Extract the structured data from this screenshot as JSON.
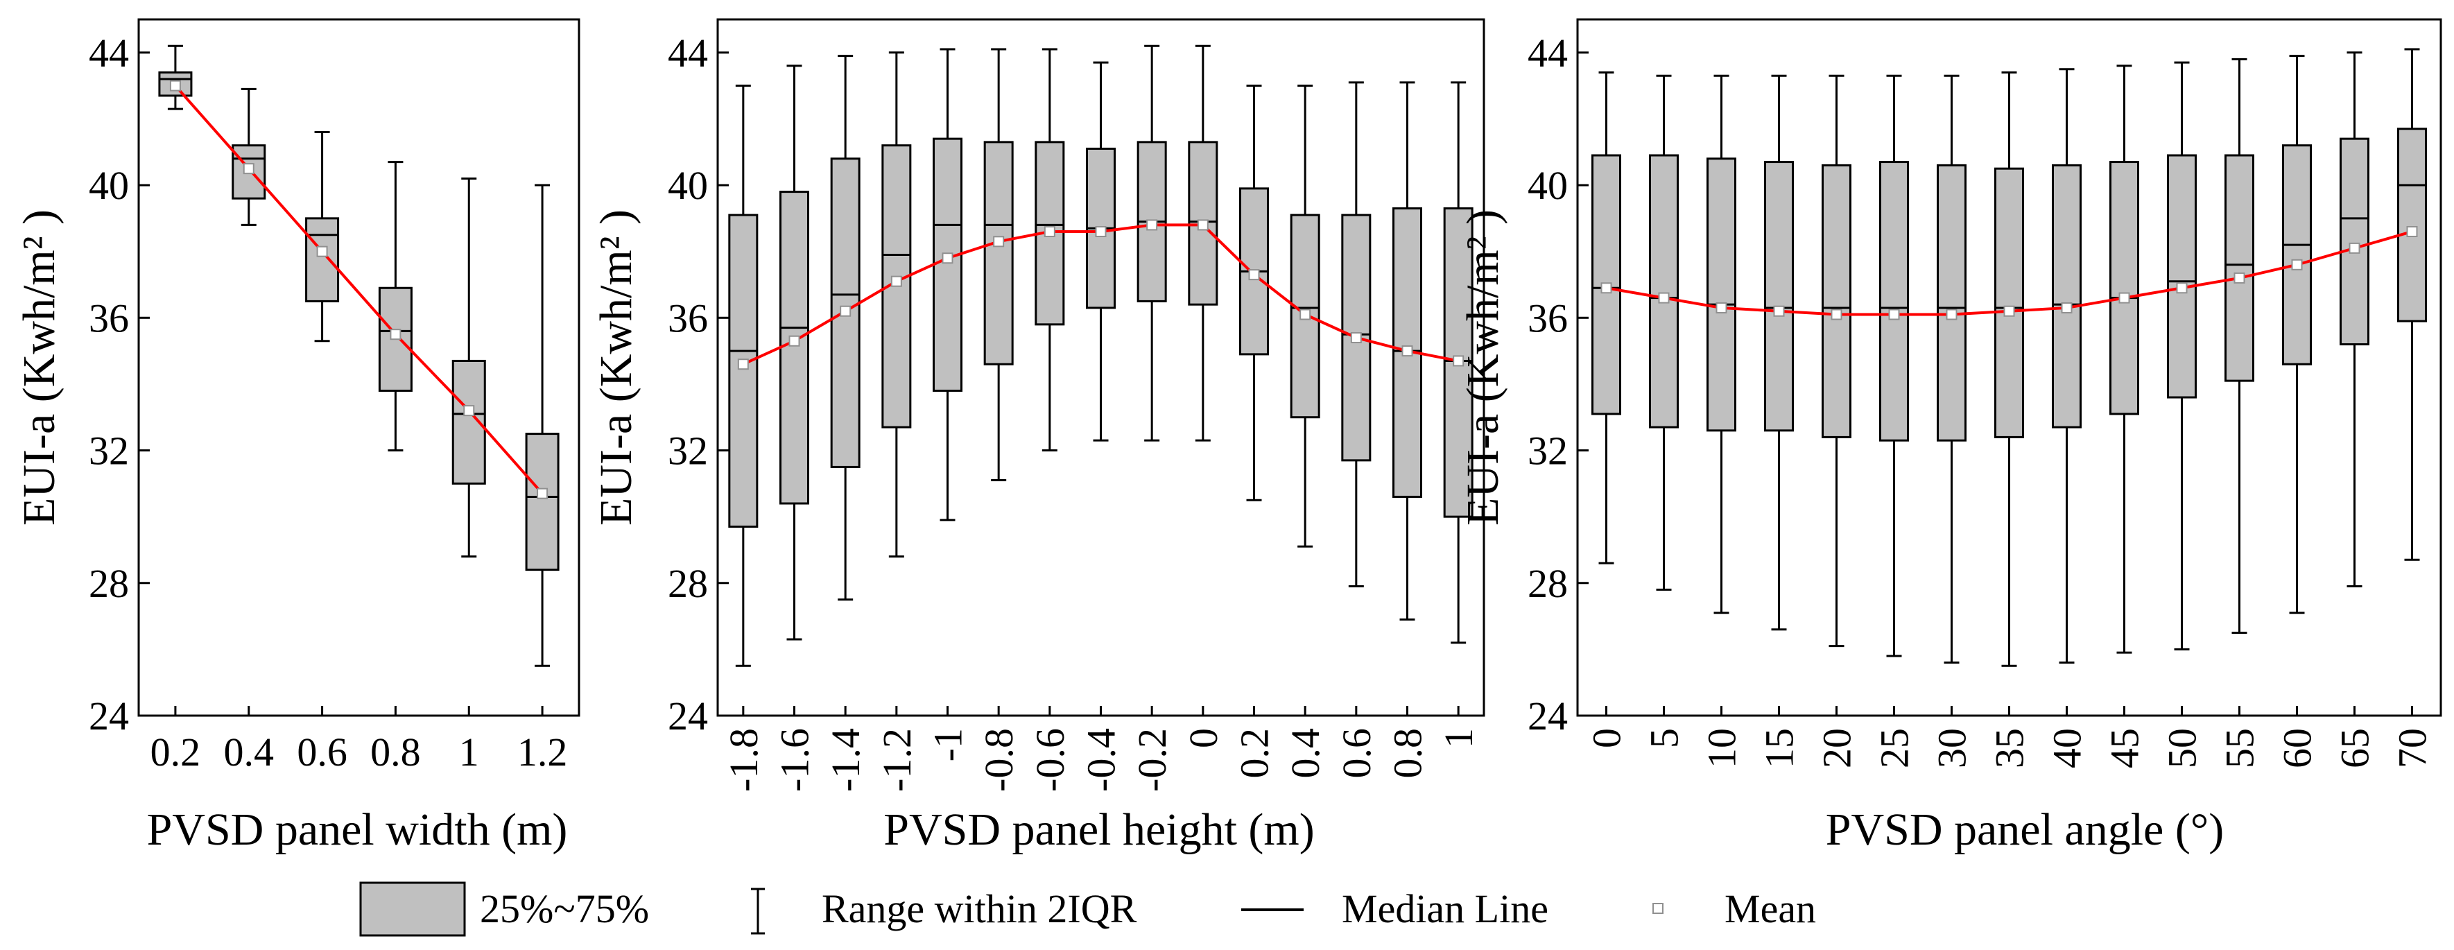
{
  "colors": {
    "box_fill": "#c0c0c0",
    "stroke": "#000000",
    "mean_line": "#ff0000",
    "mean_marker_fill": "#ffffff",
    "mean_marker_stroke": "#909090"
  },
  "chart_data": [
    {
      "type": "box",
      "title": "",
      "xlabel": "PVSD panel width (m)",
      "ylabel": "EUI-a (Kwh/m² )",
      "ylim": [
        24,
        45
      ],
      "yticks": [
        "24",
        "28",
        "32",
        "36",
        "40",
        "44"
      ],
      "x_tick_rotation": "horizontal",
      "categories": [
        "0.2",
        "0.4",
        "0.6",
        "0.8",
        "1",
        "1.2"
      ],
      "boxes": [
        {
          "whisker_low": 42.3,
          "q1": 42.7,
          "median": 43.2,
          "q3": 43.4,
          "whisker_high": 44.2,
          "mean": 43.0
        },
        {
          "whisker_low": 38.8,
          "q1": 39.6,
          "median": 40.8,
          "q3": 41.2,
          "whisker_high": 42.9,
          "mean": 40.5
        },
        {
          "whisker_low": 35.3,
          "q1": 36.5,
          "median": 38.5,
          "q3": 39.0,
          "whisker_high": 41.6,
          "mean": 38.0
        },
        {
          "whisker_low": 32.0,
          "q1": 33.8,
          "median": 35.6,
          "q3": 36.9,
          "whisker_high": 40.7,
          "mean": 35.5
        },
        {
          "whisker_low": 28.8,
          "q1": 31.0,
          "median": 33.1,
          "q3": 34.7,
          "whisker_high": 40.2,
          "mean": 33.2
        },
        {
          "whisker_low": 25.5,
          "q1": 28.4,
          "median": 30.6,
          "q3": 32.5,
          "whisker_high": 40.0,
          "mean": 30.7
        }
      ]
    },
    {
      "type": "box",
      "title": "",
      "xlabel": "PVSD panel height (m)",
      "ylabel": "EUI-a (Kwh/m² )",
      "ylim": [
        24,
        45
      ],
      "yticks": [
        "24",
        "28",
        "32",
        "36",
        "40",
        "44"
      ],
      "x_tick_rotation": "vertical",
      "categories": [
        "-1.8",
        "-1.6",
        "-1.4",
        "-1.2",
        "-1",
        "-0.8",
        "-0.6",
        "-0.4",
        "-0.2",
        "0",
        "0.2",
        "0.4",
        "0.6",
        "0.8",
        "1"
      ],
      "boxes": [
        {
          "whisker_low": 25.5,
          "q1": 29.7,
          "median": 35.0,
          "q3": 39.1,
          "whisker_high": 43.0,
          "mean": 34.6
        },
        {
          "whisker_low": 26.3,
          "q1": 30.4,
          "median": 35.7,
          "q3": 39.8,
          "whisker_high": 43.6,
          "mean": 35.3
        },
        {
          "whisker_low": 27.5,
          "q1": 31.5,
          "median": 36.7,
          "q3": 40.8,
          "whisker_high": 43.9,
          "mean": 36.2
        },
        {
          "whisker_low": 28.8,
          "q1": 32.7,
          "median": 37.9,
          "q3": 41.2,
          "whisker_high": 44.0,
          "mean": 37.1
        },
        {
          "whisker_low": 29.9,
          "q1": 33.8,
          "median": 38.8,
          "q3": 41.4,
          "whisker_high": 44.1,
          "mean": 37.8
        },
        {
          "whisker_low": 31.1,
          "q1": 34.6,
          "median": 38.8,
          "q3": 41.3,
          "whisker_high": 44.1,
          "mean": 38.3
        },
        {
          "whisker_low": 32.0,
          "q1": 35.8,
          "median": 38.8,
          "q3": 41.3,
          "whisker_high": 44.1,
          "mean": 38.6
        },
        {
          "whisker_low": 32.3,
          "q1": 36.3,
          "median": 38.7,
          "q3": 41.1,
          "whisker_high": 43.7,
          "mean": 38.6
        },
        {
          "whisker_low": 32.3,
          "q1": 36.5,
          "median": 38.9,
          "q3": 41.3,
          "whisker_high": 44.2,
          "mean": 38.8
        },
        {
          "whisker_low": 32.3,
          "q1": 36.4,
          "median": 38.9,
          "q3": 41.3,
          "whisker_high": 44.2,
          "mean": 38.8
        },
        {
          "whisker_low": 30.5,
          "q1": 34.9,
          "median": 37.4,
          "q3": 39.9,
          "whisker_high": 43.0,
          "mean": 37.3
        },
        {
          "whisker_low": 29.1,
          "q1": 33.0,
          "median": 36.3,
          "q3": 39.1,
          "whisker_high": 43.0,
          "mean": 36.1
        },
        {
          "whisker_low": 27.9,
          "q1": 31.7,
          "median": 35.5,
          "q3": 39.1,
          "whisker_high": 43.1,
          "mean": 35.4
        },
        {
          "whisker_low": 26.9,
          "q1": 30.6,
          "median": 35.0,
          "q3": 39.3,
          "whisker_high": 43.1,
          "mean": 35.0
        },
        {
          "whisker_low": 26.2,
          "q1": 30.0,
          "median": 34.7,
          "q3": 39.3,
          "whisker_high": 43.1,
          "mean": 34.7
        }
      ]
    },
    {
      "type": "box",
      "title": "",
      "xlabel": "PVSD panel angle (°)",
      "ylabel": "EUI-a (Kwh/m² )",
      "ylim": [
        24,
        45
      ],
      "yticks": [
        "24",
        "28",
        "32",
        "36",
        "40",
        "44"
      ],
      "x_tick_rotation": "vertical",
      "categories": [
        "0",
        "5",
        "10",
        "15",
        "20",
        "25",
        "30",
        "35",
        "40",
        "45",
        "50",
        "55",
        "60",
        "65",
        "70"
      ],
      "boxes": [
        {
          "whisker_low": 28.6,
          "q1": 33.1,
          "median": 36.9,
          "q3": 40.9,
          "whisker_high": 43.4,
          "mean": 36.9
        },
        {
          "whisker_low": 27.8,
          "q1": 32.7,
          "median": 36.6,
          "q3": 40.9,
          "whisker_high": 43.3,
          "mean": 36.6
        },
        {
          "whisker_low": 27.1,
          "q1": 32.6,
          "median": 36.4,
          "q3": 40.8,
          "whisker_high": 43.3,
          "mean": 36.3
        },
        {
          "whisker_low": 26.6,
          "q1": 32.6,
          "median": 36.3,
          "q3": 40.7,
          "whisker_high": 43.3,
          "mean": 36.2
        },
        {
          "whisker_low": 26.1,
          "q1": 32.4,
          "median": 36.3,
          "q3": 40.6,
          "whisker_high": 43.3,
          "mean": 36.1
        },
        {
          "whisker_low": 25.8,
          "q1": 32.3,
          "median": 36.3,
          "q3": 40.7,
          "whisker_high": 43.3,
          "mean": 36.1
        },
        {
          "whisker_low": 25.6,
          "q1": 32.3,
          "median": 36.3,
          "q3": 40.6,
          "whisker_high": 43.3,
          "mean": 36.1
        },
        {
          "whisker_low": 25.5,
          "q1": 32.4,
          "median": 36.3,
          "q3": 40.5,
          "whisker_high": 43.4,
          "mean": 36.2
        },
        {
          "whisker_low": 25.6,
          "q1": 32.7,
          "median": 36.4,
          "q3": 40.6,
          "whisker_high": 43.5,
          "mean": 36.3
        },
        {
          "whisker_low": 25.9,
          "q1": 33.1,
          "median": 36.6,
          "q3": 40.7,
          "whisker_high": 43.6,
          "mean": 36.6
        },
        {
          "whisker_low": 26.0,
          "q1": 33.6,
          "median": 37.1,
          "q3": 40.9,
          "whisker_high": 43.7,
          "mean": 36.9
        },
        {
          "whisker_low": 26.5,
          "q1": 34.1,
          "median": 37.6,
          "q3": 40.9,
          "whisker_high": 43.8,
          "mean": 37.2
        },
        {
          "whisker_low": 27.1,
          "q1": 34.6,
          "median": 38.2,
          "q3": 41.2,
          "whisker_high": 43.9,
          "mean": 37.6
        },
        {
          "whisker_low": 27.9,
          "q1": 35.2,
          "median": 39.0,
          "q3": 41.4,
          "whisker_high": 44.0,
          "mean": 38.1
        },
        {
          "whisker_low": 28.7,
          "q1": 35.9,
          "median": 40.0,
          "q3": 41.7,
          "whisker_high": 44.1,
          "mean": 38.6
        }
      ]
    }
  ],
  "legend": {
    "box_label": "25%~75%",
    "range_label": "Range within 2IQR",
    "median_label": "Median Line",
    "mean_label": "Mean"
  }
}
